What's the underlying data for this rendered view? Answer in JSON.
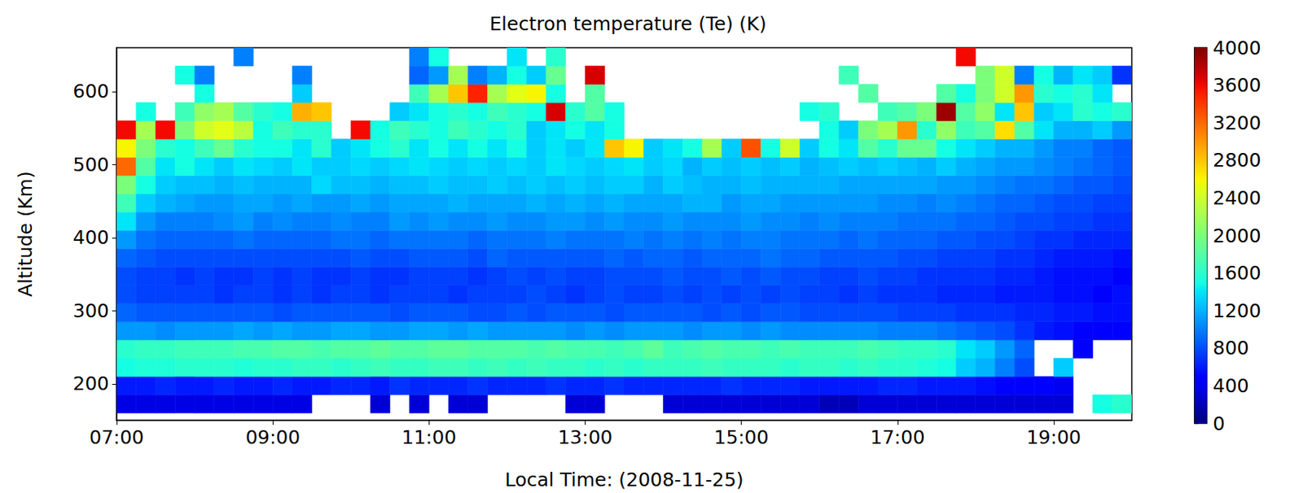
{
  "chart_data": {
    "type": "heatmap",
    "title": "Electron temperature (Te) (K)",
    "x_label": "Local Time: (2008-11-25)",
    "y_label": "Altitude (Km)",
    "grid": false,
    "xlim": [
      7,
      20
    ],
    "xticks": [
      {
        "value": 7,
        "label": "07:00"
      },
      {
        "value": 9,
        "label": "09:00"
      },
      {
        "value": 11,
        "label": "11:00"
      },
      {
        "value": 13,
        "label": "13:00"
      },
      {
        "value": 15,
        "label": "15:00"
      },
      {
        "value": 17,
        "label": "17:00"
      },
      {
        "value": 19,
        "label": "19:00"
      }
    ],
    "ylim": [
      150,
      660
    ],
    "yticks": [
      200,
      300,
      400,
      500,
      600
    ],
    "colorbar": {
      "range": [
        0,
        4000
      ],
      "ticks": [
        0,
        400,
        800,
        1200,
        1600,
        2000,
        2400,
        2800,
        3200,
        3600,
        4000
      ]
    },
    "x": [
      7,
      7.25,
      7.5,
      7.75,
      8,
      8.25,
      8.5,
      8.75,
      9,
      9.25,
      9.5,
      9.75,
      10,
      10.25,
      10.5,
      10.75,
      11,
      11.25,
      11.5,
      11.75,
      12,
      12.25,
      12.5,
      12.75,
      13,
      13.25,
      13.5,
      13.75,
      14,
      14.25,
      14.5,
      14.75,
      15,
      15.25,
      15.5,
      15.75,
      16,
      16.25,
      16.5,
      16.75,
      17,
      17.25,
      17.5,
      17.75,
      18,
      18.25,
      18.5,
      18.75,
      19,
      19.25,
      19.5,
      19.75
    ],
    "y": [
      160,
      185,
      210,
      235,
      260,
      285,
      310,
      335,
      360,
      385,
      410,
      435,
      460,
      485,
      510,
      535,
      560,
      585,
      610,
      635
    ],
    "values": [
      [
        350,
        350,
        350,
        350,
        350,
        350,
        350,
        350,
        350,
        350,
        null,
        null,
        null,
        300,
        null,
        300,
        null,
        300,
        300,
        null,
        null,
        null,
        null,
        300,
        300,
        null,
        null,
        null,
        300,
        300,
        300,
        300,
        300,
        300,
        300,
        300,
        200,
        200,
        300,
        300,
        300,
        300,
        300,
        300,
        300,
        300,
        300,
        300,
        300,
        null,
        1500,
        1600
      ],
      [
        600,
        600,
        650,
        600,
        600,
        650,
        600,
        600,
        650,
        600,
        600,
        650,
        650,
        600,
        700,
        650,
        650,
        650,
        700,
        650,
        650,
        650,
        700,
        650,
        650,
        700,
        650,
        650,
        650,
        650,
        650,
        700,
        650,
        650,
        650,
        600,
        600,
        600,
        600,
        650,
        650,
        600,
        600,
        600,
        550,
        500,
        500,
        450,
        400,
        null,
        null,
        null
      ],
      [
        1500,
        1550,
        1550,
        1600,
        1600,
        1600,
        1550,
        1600,
        1600,
        1650,
        1650,
        1600,
        1650,
        1700,
        1650,
        1650,
        1700,
        1700,
        1650,
        1700,
        1650,
        1700,
        1650,
        1650,
        1600,
        1650,
        1600,
        1650,
        1650,
        1650,
        1700,
        1650,
        1650,
        1650,
        1600,
        1650,
        1650,
        1600,
        1650,
        1600,
        1600,
        1550,
        1500,
        1300,
        1200,
        1000,
        800,
        null,
        1300,
        null,
        null,
        null
      ],
      [
        1600,
        1650,
        1650,
        1700,
        1700,
        1700,
        1750,
        1750,
        1800,
        1800,
        1750,
        1800,
        1800,
        1850,
        1800,
        1800,
        1850,
        1850,
        1800,
        1800,
        1800,
        1750,
        1800,
        1750,
        1750,
        1700,
        1750,
        1850,
        1700,
        1750,
        1800,
        1750,
        1750,
        1700,
        1750,
        1700,
        1700,
        1700,
        1750,
        1700,
        1650,
        1650,
        1600,
        1400,
        1300,
        1100,
        900,
        null,
        null,
        500,
        null,
        null
      ],
      [
        1100,
        1100,
        1050,
        1100,
        1100,
        1100,
        1150,
        1100,
        1150,
        1100,
        1100,
        1150,
        1150,
        1100,
        1100,
        1150,
        1150,
        1100,
        1150,
        1100,
        1100,
        1100,
        1100,
        1050,
        1100,
        1050,
        1100,
        1100,
        1100,
        1050,
        1100,
        1100,
        1050,
        1100,
        1050,
        1050,
        1050,
        1050,
        1050,
        1000,
        1000,
        1000,
        950,
        900,
        850,
        800,
        700,
        600,
        550,
        500,
        500,
        500
      ],
      [
        900,
        850,
        850,
        850,
        850,
        850,
        850,
        850,
        800,
        850,
        850,
        850,
        850,
        850,
        800,
        850,
        850,
        850,
        800,
        800,
        850,
        800,
        850,
        850,
        850,
        800,
        850,
        850,
        850,
        850,
        800,
        850,
        800,
        850,
        850,
        800,
        800,
        800,
        800,
        800,
        750,
        750,
        750,
        700,
        700,
        700,
        650,
        650,
        600,
        600,
        550,
        550
      ],
      [
        800,
        750,
        750,
        750,
        750,
        700,
        750,
        750,
        700,
        750,
        700,
        750,
        750,
        700,
        750,
        750,
        750,
        700,
        750,
        750,
        750,
        800,
        750,
        700,
        750,
        800,
        750,
        750,
        800,
        750,
        800,
        750,
        800,
        750,
        800,
        750,
        750,
        700,
        750,
        700,
        700,
        700,
        650,
        650,
        650,
        600,
        600,
        600,
        550,
        550,
        500,
        550
      ],
      [
        800,
        750,
        750,
        700,
        750,
        700,
        700,
        750,
        700,
        750,
        700,
        700,
        750,
        700,
        700,
        750,
        750,
        750,
        700,
        750,
        800,
        750,
        800,
        750,
        750,
        800,
        800,
        800,
        850,
        800,
        800,
        850,
        800,
        850,
        800,
        800,
        750,
        750,
        800,
        750,
        750,
        700,
        700,
        700,
        700,
        650,
        650,
        600,
        550,
        550,
        550,
        500
      ],
      [
        900,
        850,
        800,
        800,
        800,
        800,
        800,
        800,
        800,
        800,
        800,
        800,
        850,
        800,
        800,
        850,
        850,
        850,
        800,
        900,
        850,
        850,
        850,
        850,
        850,
        900,
        850,
        900,
        900,
        850,
        900,
        900,
        900,
        950,
        900,
        900,
        850,
        850,
        850,
        850,
        800,
        800,
        750,
        750,
        750,
        700,
        700,
        650,
        600,
        600,
        600,
        550
      ],
      [
        1100,
        950,
        900,
        900,
        900,
        900,
        950,
        900,
        900,
        900,
        900,
        950,
        950,
        900,
        950,
        950,
        950,
        950,
        900,
        950,
        950,
        950,
        1000,
        950,
        950,
        950,
        1000,
        950,
        1000,
        950,
        1000,
        950,
        1000,
        1000,
        950,
        950,
        950,
        900,
        950,
        900,
        900,
        900,
        850,
        850,
        800,
        800,
        750,
        700,
        700,
        650,
        650,
        650
      ],
      [
        1400,
        1100,
        1000,
        1000,
        1000,
        1050,
        1100,
        1000,
        1050,
        1000,
        1000,
        1050,
        1000,
        1000,
        1100,
        1050,
        1100,
        1050,
        1050,
        1100,
        1050,
        1050,
        1100,
        1100,
        1050,
        1100,
        1050,
        1050,
        1100,
        1050,
        1050,
        1050,
        1100,
        1050,
        1050,
        1000,
        1050,
        1000,
        1000,
        1000,
        950,
        950,
        950,
        900,
        900,
        850,
        800,
        800,
        750,
        750,
        700,
        700
      ],
      [
        1700,
        1300,
        1200,
        1150,
        1100,
        1100,
        1150,
        1150,
        1100,
        1150,
        1100,
        1100,
        1150,
        1100,
        1150,
        1150,
        1150,
        1200,
        1150,
        1150,
        1150,
        1200,
        1150,
        1200,
        1150,
        1200,
        1150,
        1150,
        1150,
        1200,
        1200,
        1100,
        1150,
        1150,
        1100,
        1100,
        1100,
        1100,
        1100,
        1050,
        1050,
        1000,
        1050,
        1000,
        950,
        900,
        900,
        850,
        800,
        800,
        750,
        750
      ],
      [
        2000,
        1500,
        1300,
        1250,
        1250,
        1200,
        1250,
        1200,
        1200,
        1200,
        1350,
        1250,
        1250,
        1200,
        1250,
        1250,
        1300,
        1250,
        1250,
        1300,
        1250,
        1300,
        1250,
        1300,
        1250,
        1300,
        1300,
        1200,
        1300,
        1250,
        1200,
        1200,
        1250,
        1200,
        1200,
        1200,
        1200,
        1150,
        1150,
        1150,
        1150,
        1150,
        1100,
        1100,
        1050,
        1000,
        950,
        950,
        900,
        850,
        850,
        800
      ],
      [
        3200,
        1800,
        1400,
        1500,
        1400,
        1300,
        1400,
        1350,
        1300,
        1400,
        1300,
        1300,
        1350,
        1300,
        1350,
        1400,
        1350,
        1300,
        1350,
        1300,
        1350,
        1300,
        1400,
        1350,
        1300,
        1350,
        1400,
        1300,
        1350,
        1200,
        1300,
        1250,
        1300,
        1250,
        1300,
        1200,
        1250,
        1300,
        1250,
        1300,
        1250,
        1200,
        1300,
        1200,
        1150,
        1100,
        1100,
        1050,
        1000,
        950,
        900,
        850
      ],
      [
        2600,
        2000,
        1600,
        1500,
        1700,
        1900,
        1600,
        1500,
        1500,
        1400,
        1600,
        1300,
        1400,
        1500,
        1600,
        1400,
        1500,
        1400,
        1500,
        1400,
        1500,
        1300,
        1400,
        1300,
        1400,
        2800,
        2600,
        1300,
        1400,
        1500,
        2200,
        1300,
        3300,
        1500,
        2400,
        1300,
        1500,
        1400,
        1800,
        1600,
        1900,
        1900,
        1500,
        1400,
        1300,
        1200,
        1200,
        1100,
        1000,
        1000,
        900,
        850
      ],
      [
        3600,
        2200,
        3600,
        2000,
        2400,
        2500,
        2300,
        1500,
        1700,
        1600,
        1600,
        null,
        3600,
        1500,
        1700,
        1600,
        1500,
        1700,
        1600,
        1500,
        1600,
        1300,
        1400,
        1500,
        1400,
        1500,
        null,
        null,
        null,
        null,
        null,
        null,
        null,
        null,
        null,
        null,
        1500,
        1300,
        2000,
        2200,
        3000,
        1600,
        2100,
        1700,
        1800,
        2700,
        1800,
        1400,
        1200,
        1200,
        1300,
        1100
      ],
      [
        null,
        1500,
        null,
        1700,
        2100,
        2200,
        1800,
        1600,
        1500,
        2900,
        2800,
        null,
        null,
        null,
        1300,
        1400,
        1500,
        1600,
        1500,
        1700,
        1600,
        1500,
        3700,
        1600,
        1800,
        1500,
        null,
        null,
        null,
        null,
        null,
        null,
        null,
        null,
        null,
        1500,
        1600,
        null,
        null,
        1700,
        1800,
        2000,
        3900,
        1800,
        2100,
        1400,
        2800,
        1300,
        1400,
        1600,
        1500,
        1600
      ],
      [
        null,
        null,
        null,
        null,
        1500,
        null,
        null,
        null,
        null,
        1300,
        null,
        null,
        null,
        null,
        null,
        1700,
        2200,
        2800,
        3500,
        2200,
        2500,
        2600,
        1500,
        null,
        1800,
        null,
        null,
        null,
        null,
        null,
        null,
        null,
        null,
        null,
        null,
        null,
        null,
        null,
        1800,
        null,
        null,
        null,
        1800,
        1500,
        2000,
        2400,
        3000,
        1600,
        1500,
        1600,
        1400,
        null
      ],
      [
        null,
        null,
        null,
        1500,
        1000,
        null,
        null,
        null,
        null,
        1000,
        null,
        null,
        null,
        null,
        null,
        900,
        1100,
        2200,
        1000,
        1200,
        1500,
        1300,
        1900,
        null,
        3700,
        null,
        null,
        null,
        null,
        null,
        null,
        null,
        null,
        null,
        null,
        null,
        null,
        1700,
        null,
        null,
        null,
        null,
        null,
        null,
        2000,
        2400,
        1000,
        1500,
        1200,
        1400,
        1300,
        700
      ],
      [
        null,
        null,
        null,
        null,
        null,
        null,
        1000,
        null,
        null,
        null,
        null,
        null,
        null,
        null,
        null,
        1000,
        1500,
        null,
        null,
        null,
        1400,
        null,
        1600,
        null,
        null,
        null,
        null,
        null,
        null,
        null,
        null,
        null,
        null,
        null,
        null,
        null,
        null,
        null,
        null,
        null,
        null,
        null,
        null,
        3600,
        null,
        null,
        null,
        null,
        null,
        null,
        null,
        null
      ]
    ]
  }
}
